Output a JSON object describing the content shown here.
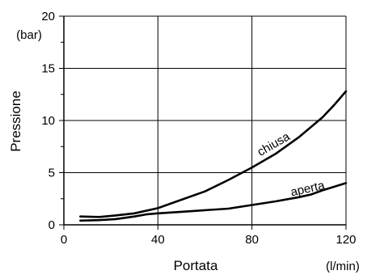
{
  "chart_data": {
    "type": "line",
    "xlabel": "Portata",
    "ylabel": "Pressione",
    "x_unit": "(l/min)",
    "y_unit": "(bar)",
    "xlim": [
      0,
      120
    ],
    "ylim": [
      0,
      20
    ],
    "x_ticks": [
      0,
      40,
      80,
      120
    ],
    "x_tick_labels": [
      "0",
      "40",
      "80",
      "120"
    ],
    "y_ticks": [
      0,
      5,
      10,
      15,
      20
    ],
    "y_tick_labels": [
      "0",
      "5",
      "10",
      "15",
      "20"
    ],
    "y_minor_ticks": [
      2.5,
      7.5,
      12.5,
      17.5
    ],
    "grid": true,
    "legend": "none",
    "series": [
      {
        "name": "chiusa",
        "x": [
          7,
          15,
          22,
          30,
          40,
          50,
          60,
          70,
          80,
          90,
          100,
          110,
          115,
          120
        ],
        "y": [
          0.8,
          0.75,
          0.9,
          1.1,
          1.6,
          2.4,
          3.2,
          4.3,
          5.5,
          6.8,
          8.4,
          10.3,
          11.5,
          12.8
        ]
      },
      {
        "name": "aperta",
        "x": [
          7,
          15,
          22,
          30,
          35,
          40,
          50,
          60,
          70,
          80,
          90,
          100,
          105,
          110,
          120
        ],
        "y": [
          0.4,
          0.45,
          0.55,
          0.8,
          1.0,
          1.1,
          1.25,
          1.4,
          1.55,
          1.9,
          2.25,
          2.65,
          2.9,
          3.3,
          4.0
        ]
      }
    ],
    "annotations": [
      {
        "text": "chiusa",
        "series": "chiusa",
        "x": 90,
        "y": 7.4
      },
      {
        "text": "aperta",
        "series": "aperta",
        "x": 104,
        "y": 3.1
      }
    ]
  }
}
